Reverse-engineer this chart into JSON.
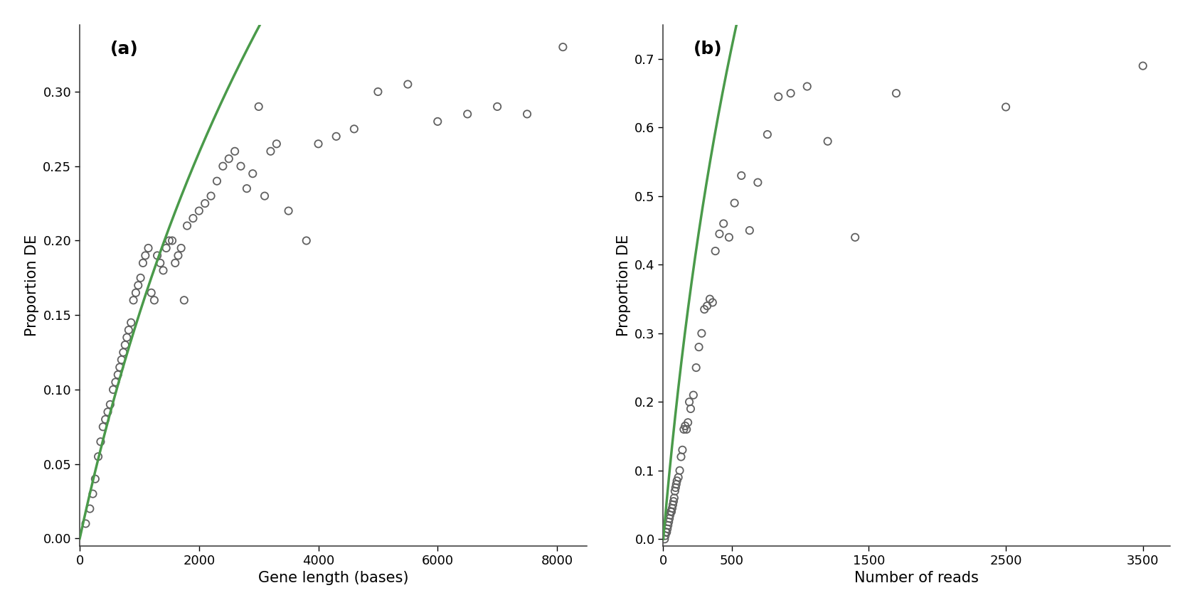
{
  "panel_a": {
    "label": "(a)",
    "xlabel": "Gene length (bases)",
    "ylabel": "Proportion DE",
    "xlim": [
      0,
      8500
    ],
    "ylim": [
      -0.005,
      0.345
    ],
    "xticks": [
      0,
      2000,
      4000,
      6000,
      8000
    ],
    "yticks": [
      0.0,
      0.05,
      0.1,
      0.15,
      0.2,
      0.25,
      0.3
    ],
    "scatter_x": [
      100,
      170,
      220,
      260,
      310,
      350,
      390,
      430,
      470,
      510,
      560,
      600,
      640,
      670,
      700,
      730,
      760,
      790,
      820,
      860,
      900,
      940,
      980,
      1020,
      1060,
      1100,
      1150,
      1200,
      1250,
      1300,
      1350,
      1400,
      1450,
      1500,
      1550,
      1600,
      1650,
      1700,
      1750,
      1800,
      1900,
      2000,
      2100,
      2200,
      2300,
      2400,
      2500,
      2600,
      2700,
      2800,
      2900,
      3000,
      3100,
      3200,
      3300,
      3500,
      3800,
      4000,
      4300,
      4600,
      5000,
      5500,
      6000,
      6500,
      7000,
      7500,
      8100
    ],
    "scatter_y": [
      0.01,
      0.02,
      0.03,
      0.04,
      0.055,
      0.065,
      0.075,
      0.08,
      0.085,
      0.09,
      0.1,
      0.105,
      0.11,
      0.115,
      0.12,
      0.125,
      0.13,
      0.135,
      0.14,
      0.145,
      0.16,
      0.165,
      0.17,
      0.175,
      0.185,
      0.19,
      0.195,
      0.165,
      0.16,
      0.19,
      0.185,
      0.18,
      0.195,
      0.2,
      0.2,
      0.185,
      0.19,
      0.195,
      0.16,
      0.21,
      0.215,
      0.22,
      0.225,
      0.23,
      0.24,
      0.25,
      0.255,
      0.26,
      0.25,
      0.235,
      0.245,
      0.29,
      0.23,
      0.26,
      0.265,
      0.22,
      0.2,
      0.265,
      0.27,
      0.275,
      0.3,
      0.305,
      0.28,
      0.285,
      0.29,
      0.285,
      0.33
    ],
    "curve_a": 0.385,
    "curve_b": 0.00048
  },
  "panel_b": {
    "label": "(b)",
    "xlabel": "Number of reads",
    "ylabel": "Proportion DE",
    "xlim": [
      0,
      3700
    ],
    "ylim": [
      -0.01,
      0.75
    ],
    "xticks": [
      0,
      500,
      1500,
      2500,
      3500
    ],
    "yticks": [
      0.0,
      0.1,
      0.2,
      0.3,
      0.4,
      0.5,
      0.6,
      0.7
    ],
    "scatter_x": [
      10,
      15,
      20,
      25,
      30,
      35,
      40,
      45,
      50,
      55,
      60,
      65,
      70,
      75,
      80,
      85,
      90,
      95,
      100,
      110,
      120,
      130,
      140,
      150,
      160,
      170,
      180,
      190,
      200,
      220,
      240,
      260,
      280,
      300,
      320,
      340,
      360,
      380,
      410,
      440,
      480,
      520,
      570,
      630,
      690,
      760,
      840,
      930,
      1050,
      1200,
      1400,
      1700,
      2500,
      3500
    ],
    "scatter_y": [
      0.0,
      0.005,
      0.01,
      0.01,
      0.015,
      0.02,
      0.025,
      0.03,
      0.035,
      0.04,
      0.04,
      0.045,
      0.05,
      0.055,
      0.06,
      0.07,
      0.075,
      0.08,
      0.085,
      0.09,
      0.1,
      0.12,
      0.13,
      0.16,
      0.165,
      0.16,
      0.17,
      0.2,
      0.19,
      0.21,
      0.25,
      0.28,
      0.3,
      0.335,
      0.34,
      0.35,
      0.345,
      0.42,
      0.445,
      0.46,
      0.44,
      0.49,
      0.53,
      0.45,
      0.52,
      0.59,
      0.645,
      0.65,
      0.66,
      0.58,
      0.44,
      0.65,
      0.63,
      0.69
    ],
    "curve_a": 0.82,
    "curve_b": 0.0028
  },
  "scatter_edgecolor": "#606060",
  "scatter_facecolor": "none",
  "curve_color": "#4a9a4a",
  "background_color": "#ffffff",
  "panel_bg": "#ffffff",
  "label_fontsize": 18,
  "axis_fontsize": 15,
  "tick_fontsize": 13
}
